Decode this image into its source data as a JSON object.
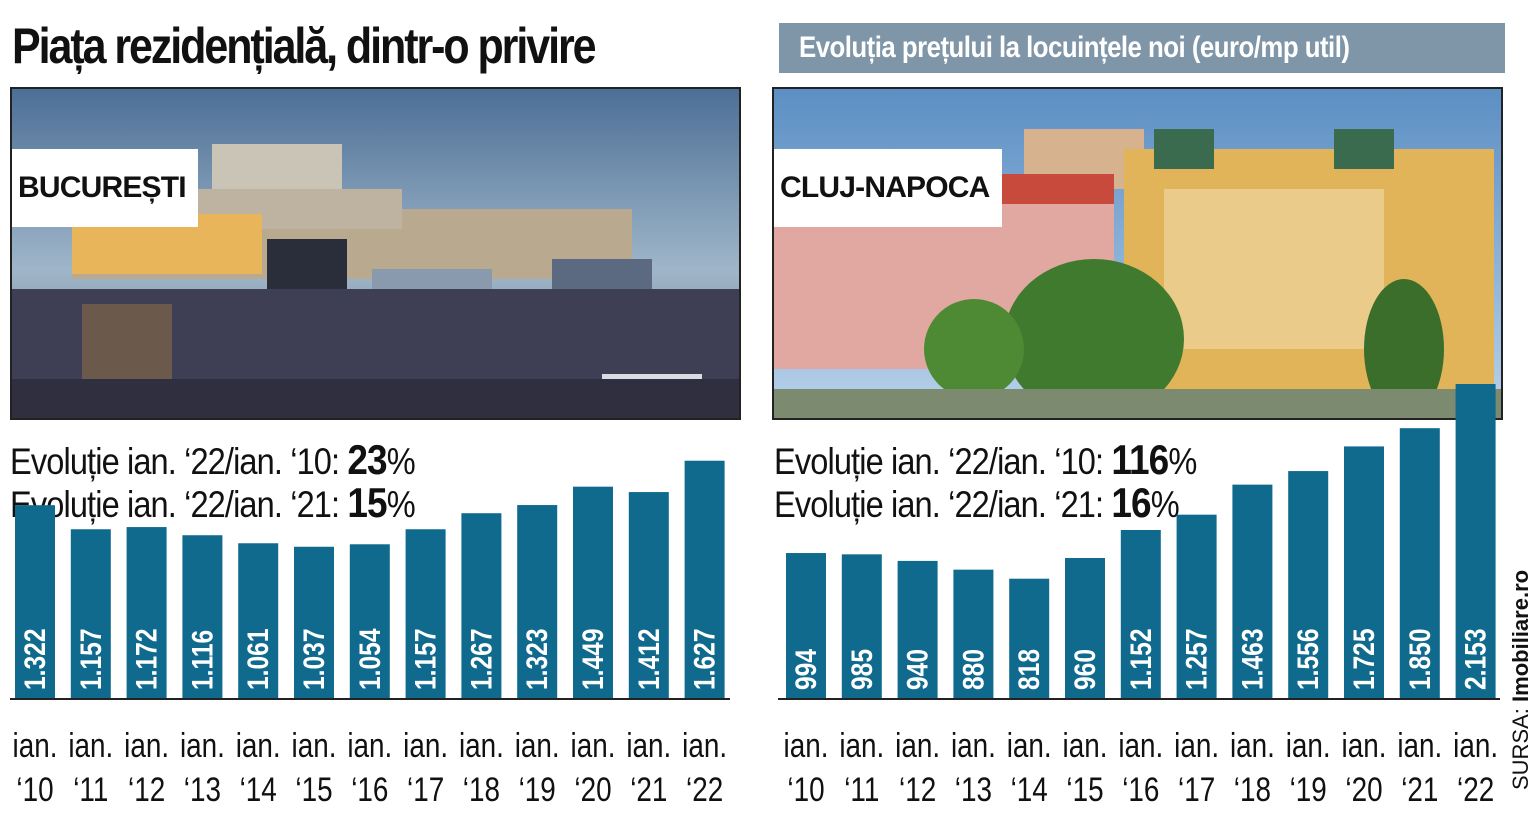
{
  "title": "Piața rezidențială, dintr-o privire",
  "subtitle": "Evoluția prețului la locuințele noi (euro/mp util)",
  "source_prefix": "SURSA:",
  "source_name": "Imobiliare.ro",
  "colors": {
    "bar": "#0f6a8e",
    "subtitle_bg": "#7f95a8",
    "bar_text": "#ffffff"
  },
  "panels": [
    {
      "city": "BUCUREȘTI",
      "stat1_label": "Evoluție ian. ‘22/ian. ‘10:",
      "stat1_value": "23",
      "stat2_label": "Evoluție ian. ‘22/ian. ‘21:",
      "stat2_value": "15",
      "percent_sign": "%"
    },
    {
      "city": "CLUJ-NAPOCA",
      "stat1_label": "Evoluție ian. ‘22/ian. ‘10:",
      "stat1_value": "116",
      "stat2_label": "Evoluție ian. ‘22/ian. ‘21:",
      "stat2_value": "16",
      "percent_sign": "%"
    }
  ],
  "chart_data": [
    {
      "type": "bar",
      "name": "BUCUREȘTI",
      "categories": [
        [
          "ian.",
          "‘10"
        ],
        [
          "ian.",
          "‘11"
        ],
        [
          "ian.",
          "‘12"
        ],
        [
          "ian.",
          "‘13"
        ],
        [
          "ian.",
          "‘14"
        ],
        [
          "ian.",
          "‘15"
        ],
        [
          "ian.",
          "‘16"
        ],
        [
          "ian.",
          "‘17"
        ],
        [
          "ian.",
          "‘18"
        ],
        [
          "ian.",
          "‘19"
        ],
        [
          "ian.",
          "‘20"
        ],
        [
          "ian.",
          "‘21"
        ],
        [
          "ian.",
          "‘22"
        ]
      ],
      "values": [
        1322,
        1157,
        1172,
        1116,
        1061,
        1037,
        1054,
        1157,
        1267,
        1323,
        1449,
        1412,
        1627
      ],
      "labels": [
        "1.322",
        "1.157",
        "1.172",
        "1.116",
        "1.061",
        "1.037",
        "1.054",
        "1.157",
        "1.267",
        "1.323",
        "1.449",
        "1.412",
        "1.627"
      ],
      "ylim": [
        0,
        2200
      ]
    },
    {
      "type": "bar",
      "name": "CLUJ-NAPOCA",
      "categories": [
        [
          "ian.",
          "‘10"
        ],
        [
          "ian.",
          "‘11"
        ],
        [
          "ian.",
          "‘12"
        ],
        [
          "ian.",
          "‘13"
        ],
        [
          "ian.",
          "‘14"
        ],
        [
          "ian.",
          "‘15"
        ],
        [
          "ian.",
          "‘16"
        ],
        [
          "ian.",
          "‘17"
        ],
        [
          "ian.",
          "‘18"
        ],
        [
          "ian.",
          "‘19"
        ],
        [
          "ian.",
          "‘20"
        ],
        [
          "ian.",
          "‘21"
        ],
        [
          "ian.",
          "‘22"
        ]
      ],
      "values": [
        994,
        985,
        940,
        880,
        818,
        960,
        1152,
        1257,
        1463,
        1556,
        1725,
        1850,
        2153
      ],
      "labels": [
        "994",
        "985",
        "940",
        "880",
        "818",
        "960",
        "1.152",
        "1.257",
        "1.463",
        "1.556",
        "1.725",
        "1.850",
        "2.153"
      ],
      "ylim": [
        0,
        2200
      ]
    }
  ]
}
